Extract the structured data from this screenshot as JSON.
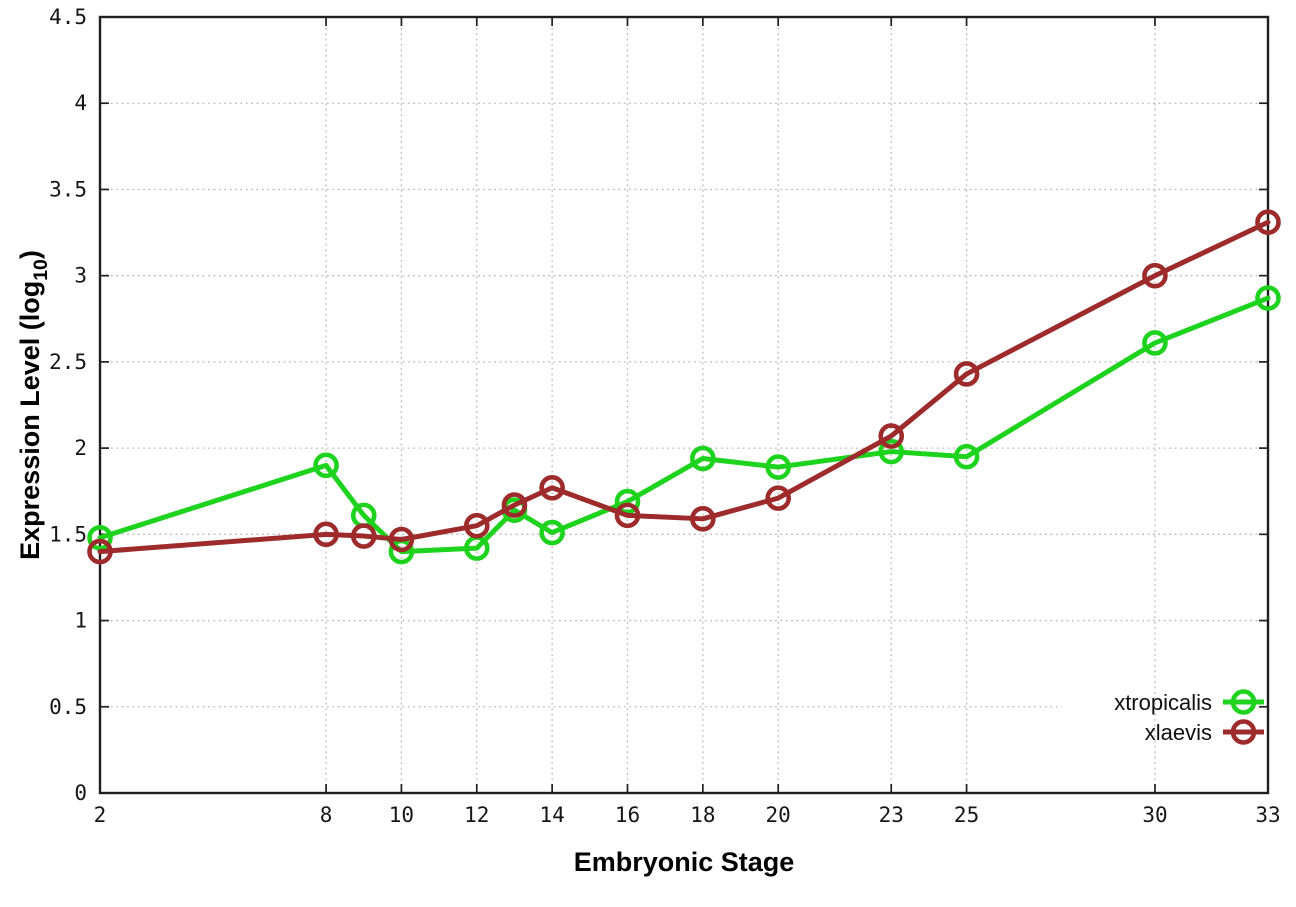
{
  "chart_data": {
    "type": "line",
    "title": "",
    "xlabel": "Embryonic Stage",
    "ylabel": "Expression Level (log10)",
    "ylabel_parts": {
      "pre": "Expression Level (log",
      "sub": "10",
      "post": ")"
    },
    "x": [
      2,
      8,
      9,
      10,
      12,
      13,
      14,
      16,
      18,
      20,
      23,
      25,
      30,
      33
    ],
    "series": [
      {
        "name": "xtropicalis",
        "color": "#1ed31e",
        "values": [
          1.48,
          1.9,
          1.61,
          1.4,
          1.42,
          1.64,
          1.51,
          1.69,
          1.94,
          1.89,
          1.98,
          1.95,
          2.61,
          2.87
        ]
      },
      {
        "name": "xlaevis",
        "color": "#9e2b2b",
        "values": [
          1.4,
          1.5,
          1.49,
          1.47,
          1.55,
          1.67,
          1.77,
          1.61,
          1.59,
          1.71,
          2.07,
          2.43,
          3.0,
          3.31
        ]
      }
    ],
    "xticks": [
      2,
      8,
      10,
      12,
      14,
      16,
      18,
      20,
      23,
      25,
      30,
      33
    ],
    "yticks": [
      0,
      0.5,
      1,
      1.5,
      2,
      2.5,
      3,
      3.5,
      4,
      4.5
    ],
    "xlim": [
      2,
      33
    ],
    "ylim": [
      0,
      4.5
    ],
    "grid": true,
    "marker": "open-circle",
    "legend_position": "bottom-right",
    "colors": {
      "axis": "#1f1f1f",
      "grid": "#b9b9b9",
      "background": "#ffffff"
    }
  }
}
